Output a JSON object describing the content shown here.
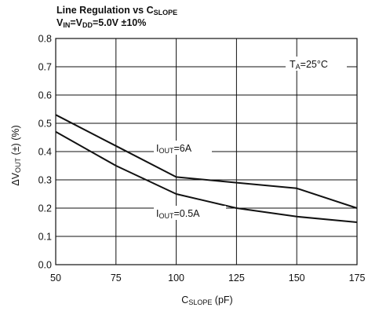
{
  "chart_data": {
    "type": "line",
    "title_main": "Line Regulation vs C",
    "title_main_sub": "SLOPE",
    "subtitle_parts": [
      "V",
      "IN",
      "=V",
      "DD",
      "=5.0V ±10%"
    ],
    "xlabel_main": "C",
    "xlabel_sub": "SLOPE",
    "xlabel_unit": " (pF)",
    "ylabel_prefix": "ΔV",
    "ylabel_sub": "OUT",
    "ylabel_suffix": " (±) (%)",
    "xlim": [
      50,
      175
    ],
    "ylim": [
      0.0,
      0.8
    ],
    "x_ticks": [
      50,
      75,
      100,
      125,
      150,
      175
    ],
    "x_tick_labels": [
      "50",
      "75",
      "100",
      "125",
      "150",
      "175"
    ],
    "y_ticks": [
      0.0,
      0.1,
      0.2,
      0.3,
      0.4,
      0.5,
      0.6,
      0.7,
      0.8
    ],
    "y_tick_labels": [
      "0.0",
      "0.1",
      "0.2",
      "0.3",
      "0.4",
      "0.5",
      "0.6",
      "0.7",
      "0.8"
    ],
    "grid": true,
    "series": [
      {
        "label_main": "I",
        "label_sub": "OUT",
        "label_rest": "=6A",
        "x": [
          50,
          75,
          100,
          125,
          150,
          175
        ],
        "y": [
          0.53,
          0.42,
          0.31,
          0.29,
          0.27,
          0.2
        ]
      },
      {
        "label_main": "I",
        "label_sub": "OUT",
        "label_rest": "=0.5A",
        "x": [
          50,
          75,
          100,
          125,
          150,
          175
        ],
        "y": [
          0.47,
          0.35,
          0.25,
          0.2,
          0.17,
          0.15
        ]
      }
    ],
    "annotation": {
      "main": "T",
      "sub": "A",
      "rest": "=25°C"
    }
  }
}
